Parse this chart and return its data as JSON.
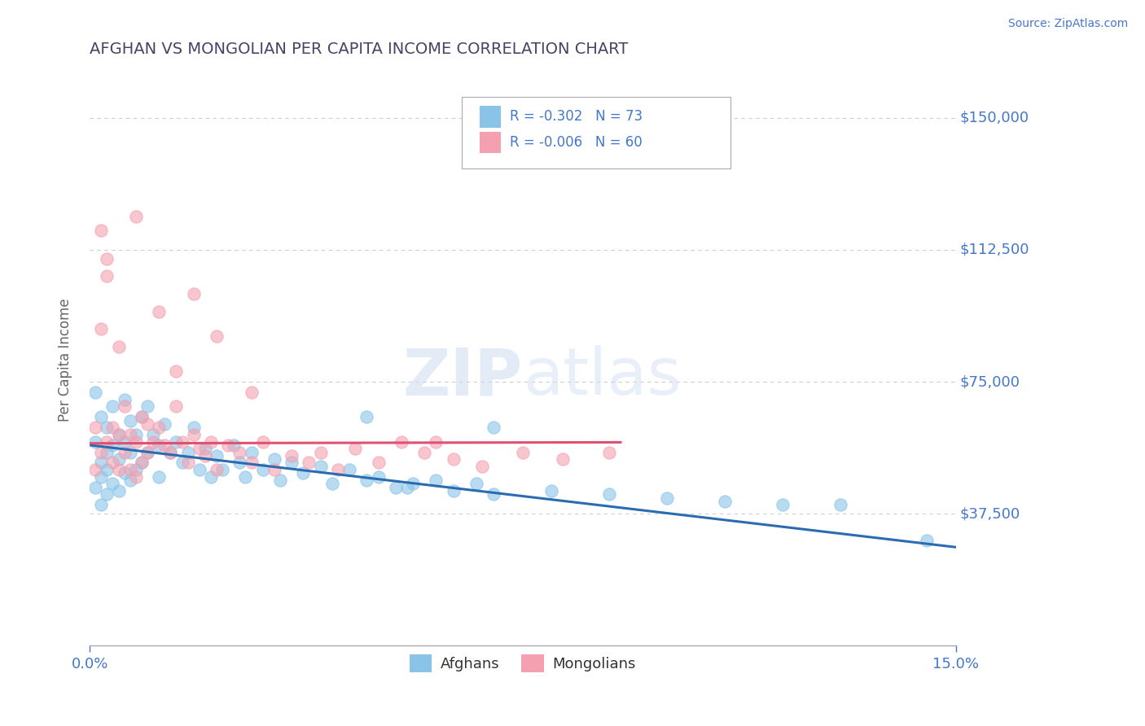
{
  "title": "AFGHAN VS MONGOLIAN PER CAPITA INCOME CORRELATION CHART",
  "source": "Source: ZipAtlas.com",
  "ylabel": "Per Capita Income",
  "xlim": [
    0.0,
    0.15
  ],
  "ylim": [
    0,
    162500
  ],
  "yticks": [
    0,
    37500,
    75000,
    112500,
    150000
  ],
  "ytick_labels": [
    "",
    "$37,500",
    "$75,000",
    "$112,500",
    "$150,000"
  ],
  "xticks": [
    0.0,
    0.15
  ],
  "xtick_labels": [
    "0.0%",
    "15.0%"
  ],
  "afghan_color": "#89c4e8",
  "mongolian_color": "#f4a0b0",
  "afghan_line_color": "#2b6cb0",
  "mongolian_line_color": "#e05070",
  "legend_afghans": "Afghans",
  "legend_mongolians": "Mongolians",
  "watermark_zip": "ZIP",
  "watermark_atlas": "atlas",
  "title_color": "#444466",
  "axis_label_color": "#666666",
  "tick_color": "#4477cc",
  "background_color": "#ffffff",
  "grid_color": "#cccccc",
  "afghan_R": -0.302,
  "afghan_N": 73,
  "mongolian_R": -0.006,
  "mongolian_N": 60,
  "afghan_line_x0": 0.0,
  "afghan_line_x1": 0.15,
  "afghan_line_y0": 57000,
  "afghan_line_y1": 28000,
  "mongolian_line_x0": 0.0,
  "mongolian_line_x1": 0.092,
  "mongolian_line_y0": 57500,
  "mongolian_line_y1": 57800,
  "afghan_scatter_x": [
    0.001,
    0.001,
    0.001,
    0.002,
    0.002,
    0.002,
    0.002,
    0.003,
    0.003,
    0.003,
    0.003,
    0.004,
    0.004,
    0.004,
    0.005,
    0.005,
    0.005,
    0.006,
    0.006,
    0.006,
    0.007,
    0.007,
    0.007,
    0.008,
    0.008,
    0.009,
    0.009,
    0.01,
    0.01,
    0.011,
    0.012,
    0.012,
    0.013,
    0.014,
    0.015,
    0.016,
    0.017,
    0.018,
    0.019,
    0.02,
    0.021,
    0.022,
    0.023,
    0.025,
    0.026,
    0.027,
    0.028,
    0.03,
    0.032,
    0.033,
    0.035,
    0.037,
    0.04,
    0.042,
    0.045,
    0.048,
    0.05,
    0.053,
    0.056,
    0.06,
    0.063,
    0.067,
    0.07,
    0.08,
    0.09,
    0.1,
    0.11,
    0.12,
    0.13,
    0.07,
    0.055,
    0.048,
    0.145
  ],
  "afghan_scatter_y": [
    72000,
    58000,
    45000,
    65000,
    52000,
    48000,
    40000,
    62000,
    55000,
    50000,
    43000,
    68000,
    57000,
    46000,
    60000,
    53000,
    44000,
    70000,
    58000,
    49000,
    64000,
    55000,
    47000,
    60000,
    50000,
    65000,
    52000,
    68000,
    55000,
    60000,
    57000,
    48000,
    63000,
    55000,
    58000,
    52000,
    55000,
    62000,
    50000,
    56000,
    48000,
    54000,
    50000,
    57000,
    52000,
    48000,
    55000,
    50000,
    53000,
    47000,
    52000,
    49000,
    51000,
    46000,
    50000,
    47000,
    48000,
    45000,
    46000,
    47000,
    44000,
    46000,
    43000,
    44000,
    43000,
    42000,
    41000,
    40000,
    40000,
    62000,
    45000,
    65000,
    30000
  ],
  "mongolian_scatter_x": [
    0.001,
    0.001,
    0.002,
    0.002,
    0.003,
    0.003,
    0.004,
    0.004,
    0.005,
    0.005,
    0.006,
    0.006,
    0.007,
    0.007,
    0.008,
    0.008,
    0.009,
    0.009,
    0.01,
    0.01,
    0.011,
    0.012,
    0.013,
    0.014,
    0.015,
    0.016,
    0.017,
    0.018,
    0.019,
    0.02,
    0.021,
    0.022,
    0.024,
    0.026,
    0.028,
    0.03,
    0.032,
    0.035,
    0.038,
    0.04,
    0.043,
    0.046,
    0.05,
    0.054,
    0.058,
    0.063,
    0.068,
    0.075,
    0.082,
    0.09,
    0.002,
    0.003,
    0.005,
    0.008,
    0.012,
    0.015,
    0.018,
    0.022,
    0.028,
    0.06
  ],
  "mongolian_scatter_y": [
    62000,
    50000,
    118000,
    55000,
    110000,
    58000,
    62000,
    52000,
    60000,
    50000,
    68000,
    55000,
    60000,
    50000,
    58000,
    48000,
    65000,
    52000,
    63000,
    55000,
    58000,
    62000,
    57000,
    55000,
    68000,
    58000,
    52000,
    60000,
    56000,
    54000,
    58000,
    50000,
    57000,
    55000,
    52000,
    58000,
    50000,
    54000,
    52000,
    55000,
    50000,
    56000,
    52000,
    58000,
    55000,
    53000,
    51000,
    55000,
    53000,
    55000,
    90000,
    105000,
    85000,
    122000,
    95000,
    78000,
    100000,
    88000,
    72000,
    58000
  ]
}
